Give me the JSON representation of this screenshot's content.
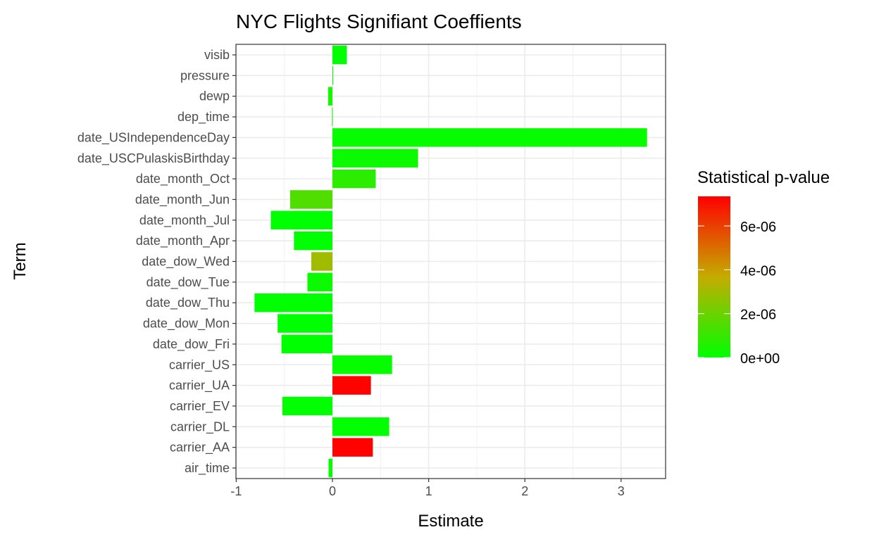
{
  "chart_data": {
    "type": "bar",
    "orientation": "horizontal",
    "title": "NYC Flights Signifiant Coeffients",
    "xlabel": "Estimate",
    "ylabel": "Term",
    "xlim": [
      -1,
      3.45
    ],
    "xticks": [
      -1,
      0,
      1,
      2,
      3
    ],
    "xtick_labels": [
      "-1",
      "0",
      "1",
      "2",
      "3"
    ],
    "grid": true,
    "categories": [
      "visib",
      "pressure",
      "dewp",
      "dep_time",
      "date_USIndependenceDay",
      "date_USCPulaskisBirthday",
      "date_month_Oct",
      "date_month_Jun",
      "date_month_Jul",
      "date_month_Apr",
      "date_dow_Wed",
      "date_dow_Tue",
      "date_dow_Thu",
      "date_dow_Mon",
      "date_dow_Fri",
      "carrier_US",
      "carrier_UA",
      "carrier_EV",
      "carrier_DL",
      "carrier_AA",
      "air_time"
    ],
    "values": [
      0.15,
      0.003,
      -0.045,
      -0.004,
      3.27,
      0.89,
      0.45,
      -0.44,
      -0.64,
      -0.4,
      -0.22,
      -0.26,
      -0.81,
      -0.57,
      -0.53,
      0.62,
      0.4,
      -0.52,
      0.59,
      0.42,
      -0.04
    ],
    "p_values": [
      0.0,
      1e-07,
      4e-07,
      1e-07,
      1e-07,
      2e-07,
      8e-07,
      1.5e-06,
      0.0,
      0.0,
      3e-06,
      2e-07,
      0.0,
      0.0,
      0.0,
      1e-07,
      7.3e-06,
      0.0,
      0.0,
      7.3e-06,
      1e-07
    ],
    "legend": {
      "title": "Statistical p-value",
      "placement": "right",
      "range": [
        0,
        7.35e-06
      ],
      "ticks": [
        0,
        2e-06,
        4e-06,
        6e-06
      ],
      "tick_labels": [
        "0e+00",
        "2e-06",
        "4e-06",
        "6e-06"
      ],
      "low_color": "#00ff00",
      "mid_color": "#c4ac00",
      "high_color": "#ff0000"
    }
  }
}
